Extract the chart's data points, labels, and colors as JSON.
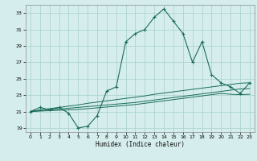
{
  "xlabel": "Humidex (Indice chaleur)",
  "bg_color": "#d5eeed",
  "grid_color": "#aed4d0",
  "line_color": "#1a6b5a",
  "xlim": [
    -0.5,
    23.5
  ],
  "ylim": [
    18.5,
    34.0
  ],
  "xticks": [
    0,
    1,
    2,
    3,
    4,
    5,
    6,
    7,
    8,
    9,
    10,
    11,
    12,
    13,
    14,
    15,
    16,
    17,
    18,
    19,
    20,
    21,
    22,
    23
  ],
  "yticks": [
    19,
    21,
    23,
    25,
    27,
    29,
    31,
    33
  ],
  "main_curve": [
    21.0,
    21.5,
    21.2,
    21.5,
    20.8,
    19.0,
    19.2,
    20.5,
    23.5,
    24.0,
    29.5,
    30.5,
    31.0,
    32.5,
    33.5,
    32.0,
    30.5,
    27.0,
    29.5,
    25.5,
    24.5,
    24.0,
    23.2,
    24.5
  ],
  "line1": [
    21.0,
    21.2,
    21.35,
    21.5,
    21.65,
    21.8,
    22.0,
    22.15,
    22.3,
    22.45,
    22.6,
    22.75,
    22.9,
    23.1,
    23.25,
    23.4,
    23.55,
    23.7,
    23.85,
    24.0,
    24.15,
    24.3,
    24.45,
    24.5
  ],
  "line2": [
    21.0,
    21.1,
    21.2,
    21.3,
    21.4,
    21.5,
    21.6,
    21.7,
    21.8,
    21.9,
    22.0,
    22.1,
    22.25,
    22.4,
    22.55,
    22.7,
    22.85,
    23.0,
    23.15,
    23.3,
    23.45,
    23.6,
    23.75,
    23.8
  ],
  "line3": [
    21.0,
    21.05,
    21.1,
    21.15,
    21.2,
    21.25,
    21.35,
    21.45,
    21.55,
    21.65,
    21.75,
    21.85,
    22.0,
    22.15,
    22.3,
    22.45,
    22.6,
    22.75,
    22.9,
    23.05,
    23.2,
    23.1,
    23.05,
    23.1
  ]
}
